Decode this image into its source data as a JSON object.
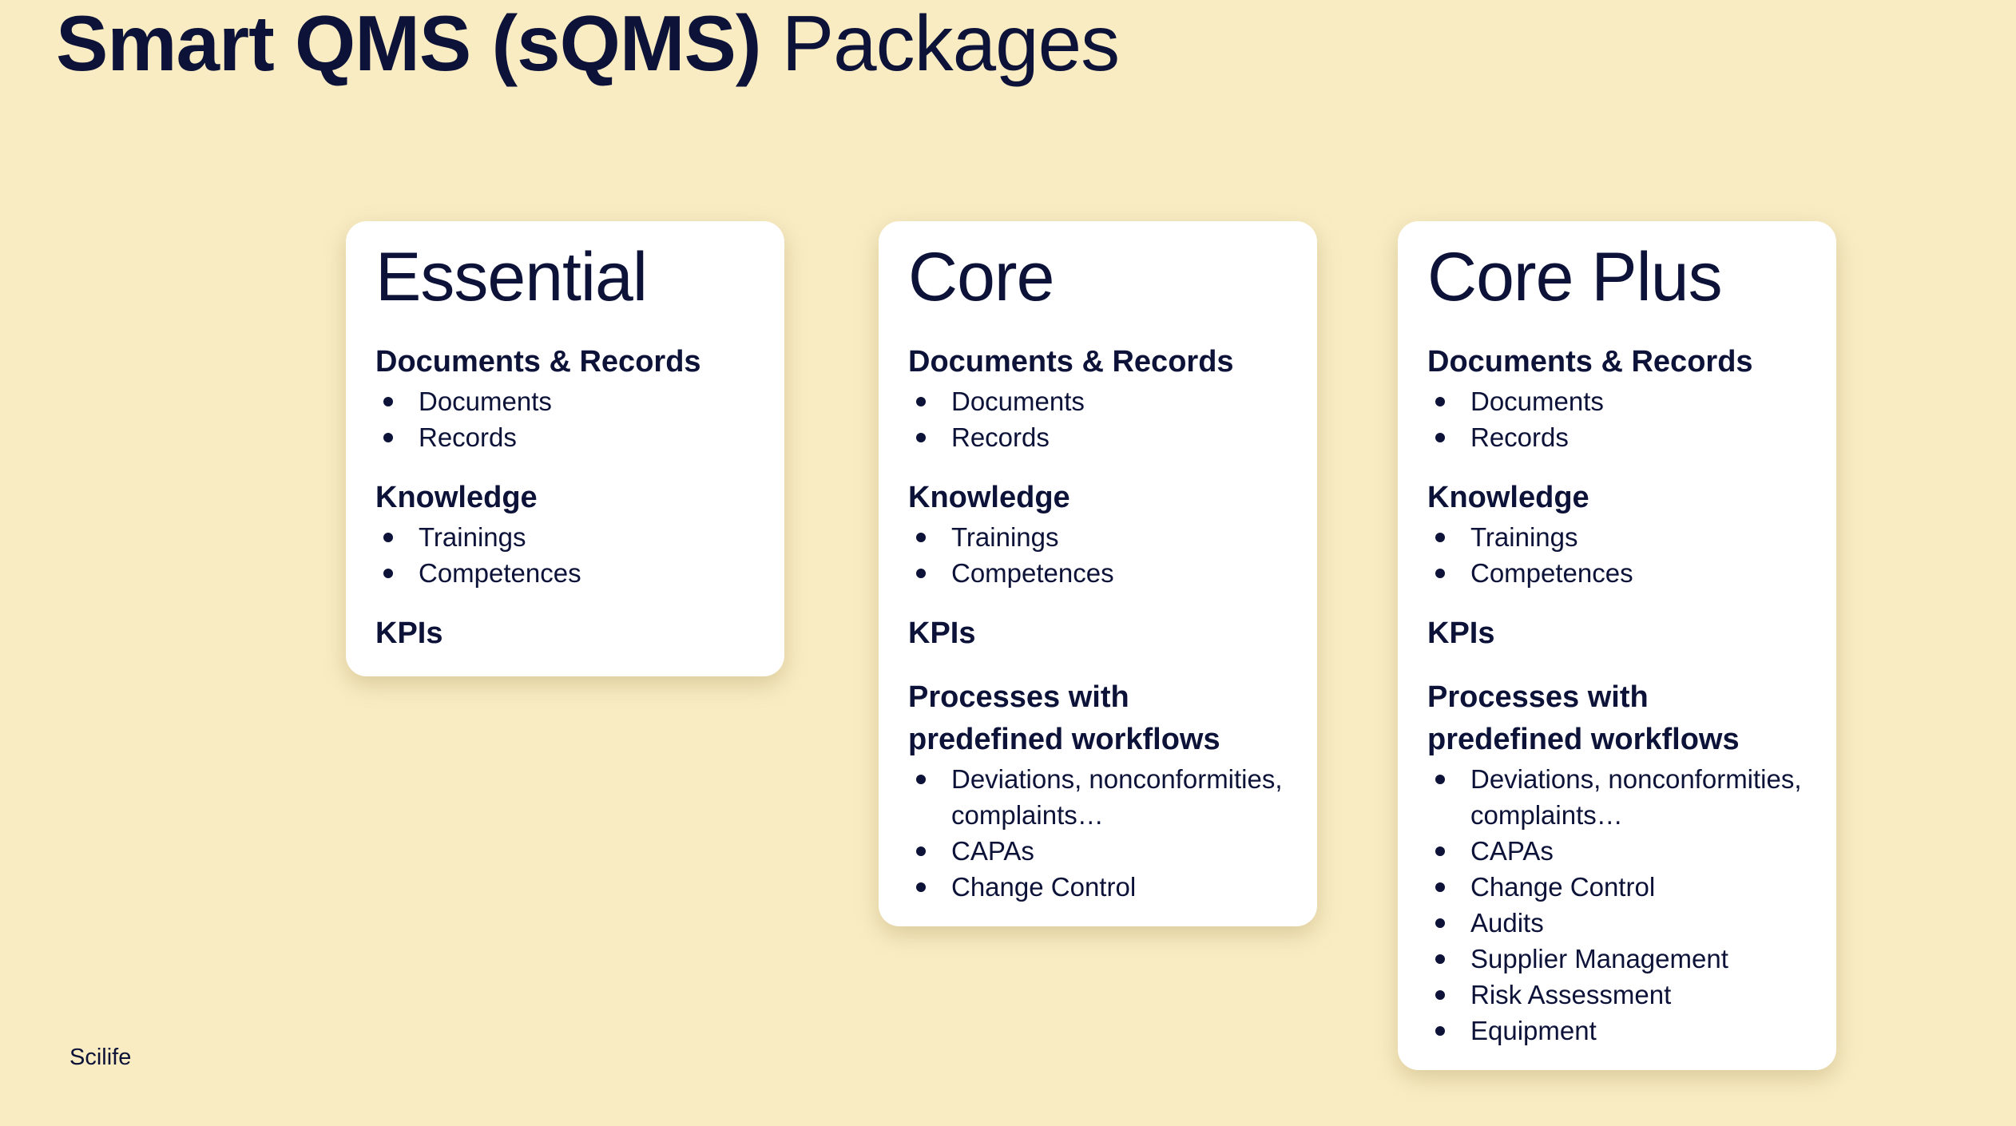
{
  "title": {
    "bold": "Smart QMS (sQMS)",
    "regular": "Packages"
  },
  "packages": [
    {
      "name": "Essential",
      "sections": [
        {
          "heading": "Documents & Records",
          "items": [
            "Documents",
            "Records"
          ]
        },
        {
          "heading": "Knowledge",
          "items": [
            "Trainings",
            "Competences"
          ]
        },
        {
          "heading": "KPIs",
          "items": []
        }
      ]
    },
    {
      "name": "Core",
      "sections": [
        {
          "heading": "Documents & Records",
          "items": [
            "Documents",
            "Records"
          ]
        },
        {
          "heading": "Knowledge",
          "items": [
            "Trainings",
            "Competences"
          ]
        },
        {
          "heading": "KPIs",
          "items": []
        },
        {
          "heading": "Processes with predefined workflows",
          "items": [
            "Deviations, nonconformities, complaints…",
            "CAPAs",
            "Change Control"
          ]
        }
      ]
    },
    {
      "name": "Core Plus",
      "sections": [
        {
          "heading": "Documents & Records",
          "items": [
            "Documents",
            "Records"
          ]
        },
        {
          "heading": "Knowledge",
          "items": [
            "Trainings",
            "Competences"
          ]
        },
        {
          "heading": "KPIs",
          "items": []
        },
        {
          "heading": "Processes with predefined workflows",
          "items": [
            "Deviations, nonconformities, complaints…",
            "CAPAs",
            "Change Control",
            "Audits",
            "Supplier Management",
            "Risk Assessment",
            "Equipment"
          ]
        }
      ]
    }
  ],
  "footer": "Scilife",
  "colors": {
    "background": "#f9ecc3",
    "text": "#0c1238",
    "card": "#ffffff"
  }
}
